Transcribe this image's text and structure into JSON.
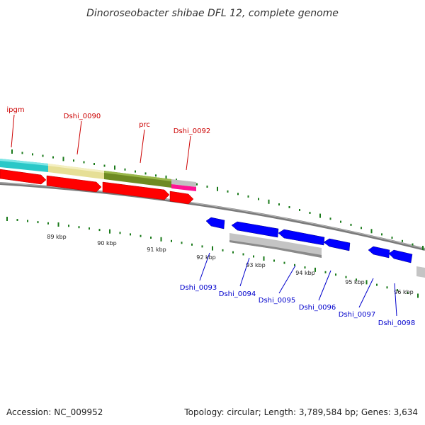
{
  "title": "Dinoroseobacter shibae DFL 12, complete genome",
  "footer": {
    "accession": "Accession: NC_009952",
    "summary": "Topology: circular; Length: 3,789,584 bp; Genes: 3,634"
  },
  "colors": {
    "forward_label": "#cc0000",
    "reverse_label": "#0000cc",
    "tick": "#1a7a1a",
    "backbone": "#808080",
    "forward_cds": "#ff0000",
    "reverse_cds": "#0000ff",
    "gray_cds": "#c0c0c0"
  },
  "scale_labels": [
    "89 kbp",
    "90 kbp",
    "91 kbp",
    "92 kbp",
    "93 kbp",
    "94 kbp",
    "95 kbp",
    "96 kbp"
  ],
  "forward_gene_labels": [
    {
      "text": "ipgm"
    },
    {
      "text": "Dshi_0090"
    },
    {
      "text": "prc"
    },
    {
      "text": "Dshi_0092"
    }
  ],
  "reverse_gene_labels": [
    {
      "text": "Dshi_0093"
    },
    {
      "text": "Dshi_0094"
    },
    {
      "text": "Dshi_0095"
    },
    {
      "text": "Dshi_0096"
    },
    {
      "text": "Dshi_0097"
    },
    {
      "text": "Dshi_0098"
    }
  ]
}
